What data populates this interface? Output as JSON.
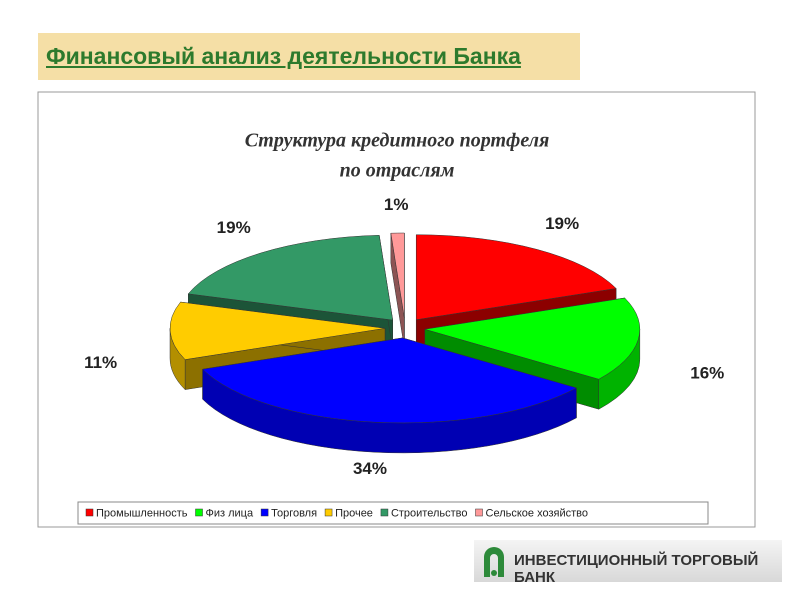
{
  "header": {
    "title": "Финансовый анализ деятельности Банка"
  },
  "logo": {
    "text": "ИНВЕСТИЦИОННЫЙ ТОРГОВЫЙ БАНК"
  },
  "chart_data": {
    "type": "pie3d",
    "title": [
      "Структура кредитного портфеля",
      "по отраслям"
    ],
    "categories": [
      "Промышленность",
      "Физ лица",
      "Торговля",
      "Прочее",
      "Строительство",
      "Сельское хозяйство"
    ],
    "values": [
      19,
      16,
      34,
      11,
      19,
      1
    ],
    "value_labels": [
      "19%",
      "16%",
      "34%",
      "11%",
      "19%",
      "1%"
    ],
    "colors": [
      "#ff0000",
      "#00ff00",
      "#0000ff",
      "#ffcc00",
      "#339966",
      "#ff9999"
    ],
    "legend": "bottom"
  }
}
